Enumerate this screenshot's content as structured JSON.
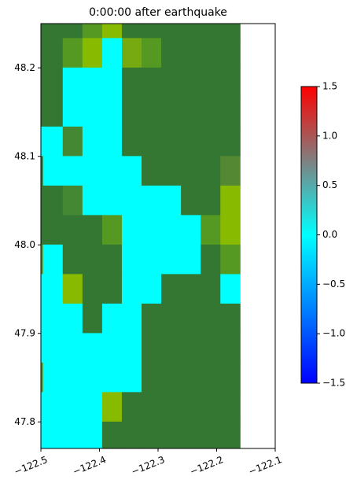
{
  "chart_data": {
    "type": "raster",
    "title": "0:00:00 after earthquake",
    "xlim": [
      -122.5,
      -122.1
    ],
    "ylim": [
      47.77,
      48.25
    ],
    "xticks": [
      {
        "value": -122.5,
        "label": "−122.5"
      },
      {
        "value": -122.4,
        "label": "−122.4"
      },
      {
        "value": -122.3,
        "label": "−122.3"
      },
      {
        "value": -122.2,
        "label": "−122.2"
      },
      {
        "value": -122.1,
        "label": "−122.1"
      }
    ],
    "yticks": [
      47.8,
      47.9,
      {
        "value": 48.0,
        "label": "48.0"
      },
      48.1,
      48.2
    ],
    "x_extent": [
      -122.53,
      -122.16
    ],
    "y_extent": [
      47.767,
      48.267
    ],
    "z": [
      [
        null,
        null,
        null,
        null,
        null,
        null,
        null,
        null,
        null,
        null,
        null
      ],
      [
        null,
        null,
        null,
        null,
        0,
        null,
        null,
        null,
        null,
        null,
        null
      ],
      [
        null,
        null,
        0,
        0,
        0,
        null,
        null,
        null,
        null,
        null,
        null
      ],
      [
        null,
        null,
        0,
        0,
        0,
        null,
        null,
        null,
        null,
        null,
        null
      ],
      [
        0,
        0,
        null,
        0,
        0,
        null,
        null,
        null,
        null,
        null,
        null
      ],
      [
        null,
        0,
        0,
        0,
        0,
        0,
        null,
        null,
        null,
        null,
        null
      ],
      [
        null,
        null,
        null,
        0,
        0,
        0,
        0,
        0,
        null,
        null,
        null
      ],
      [
        null,
        null,
        null,
        null,
        null,
        0,
        0,
        0,
        0,
        null,
        null
      ],
      [
        null,
        0,
        null,
        null,
        null,
        0,
        0,
        0,
        0,
        null,
        null
      ],
      [
        0,
        0,
        null,
        null,
        null,
        0,
        0,
        null,
        null,
        null,
        0
      ],
      [
        0,
        0,
        0,
        null,
        0,
        0,
        null,
        null,
        null,
        null,
        null
      ],
      [
        0,
        0,
        0,
        0,
        0,
        0,
        null,
        null,
        null,
        null,
        null
      ],
      [
        null,
        0,
        0,
        0,
        0,
        0,
        null,
        null,
        null,
        null,
        null
      ],
      [
        0,
        0,
        0,
        0,
        null,
        null,
        null,
        null,
        null,
        null,
        null
      ],
      [
        0,
        0,
        0,
        0,
        null,
        null,
        null,
        null,
        null,
        null,
        null
      ]
    ],
    "land": [
      [
        "#373",
        "#373",
        "#373",
        "#592",
        "#8b0",
        "#373",
        "#373",
        "#373",
        "#373",
        "#373",
        "#373"
      ],
      [
        "#373",
        "#373",
        "#592",
        "#8b0",
        null,
        "#7a1",
        "#592",
        "#373",
        "#373",
        "#373",
        "#373"
      ],
      [
        "#373",
        "#373",
        null,
        null,
        null,
        "#373",
        "#373",
        "#373",
        "#373",
        "#373",
        "#373"
      ],
      [
        "#373",
        "#373",
        null,
        null,
        null,
        "#373",
        "#373",
        "#373",
        "#373",
        "#373",
        "#373"
      ],
      [
        null,
        null,
        "#483",
        null,
        null,
        "#373",
        "#373",
        "#373",
        "#373",
        "#373",
        "#373"
      ],
      [
        "#373",
        null,
        null,
        null,
        null,
        null,
        "#373",
        "#373",
        "#373",
        "#373",
        "#583"
      ],
      [
        "#373",
        "#373",
        "#483",
        null,
        null,
        null,
        null,
        null,
        "#373",
        "#373",
        "#8b0"
      ],
      [
        "#373",
        "#373",
        "#373",
        "#373",
        "#592",
        null,
        null,
        null,
        null,
        "#592",
        "#8b0"
      ],
      [
        "#592",
        null,
        "#373",
        "#373",
        "#373",
        null,
        null,
        null,
        null,
        "#373",
        "#592"
      ],
      [
        null,
        null,
        "#8b0",
        "#373",
        "#373",
        null,
        null,
        "#373",
        "#373",
        "#373",
        null
      ],
      [
        null,
        null,
        null,
        "#373",
        null,
        null,
        "#373",
        "#373",
        "#373",
        "#373",
        "#373"
      ],
      [
        null,
        null,
        null,
        null,
        null,
        null,
        "#373",
        "#373",
        "#373",
        "#373",
        "#373"
      ],
      [
        "#592",
        null,
        null,
        null,
        null,
        null,
        "#373",
        "#373",
        "#373",
        "#373",
        "#373"
      ],
      [
        null,
        null,
        null,
        null,
        "#8b0",
        "#373",
        "#373",
        "#373",
        "#373",
        "#373",
        "#373"
      ],
      [
        null,
        null,
        null,
        null,
        "#373",
        "#373",
        "#373",
        "#373",
        "#373",
        "#373",
        "#373"
      ]
    ],
    "colorbar": {
      "lim": [
        -1.5,
        1.5
      ],
      "ticks": [
        {
          "value": -1.5,
          "label": "−1.5"
        },
        {
          "value": -1.0,
          "label": "−1.0"
        },
        {
          "value": -0.5,
          "label": "−0.5"
        },
        {
          "value": 0,
          "label": "0.0"
        },
        0.5,
        {
          "value": 1.0,
          "label": "1.0"
        },
        1.5
      ],
      "colors": [
        "#0000ff",
        "#0080ff",
        "#00ffff",
        "#808080",
        "#ff0000"
      ]
    }
  }
}
